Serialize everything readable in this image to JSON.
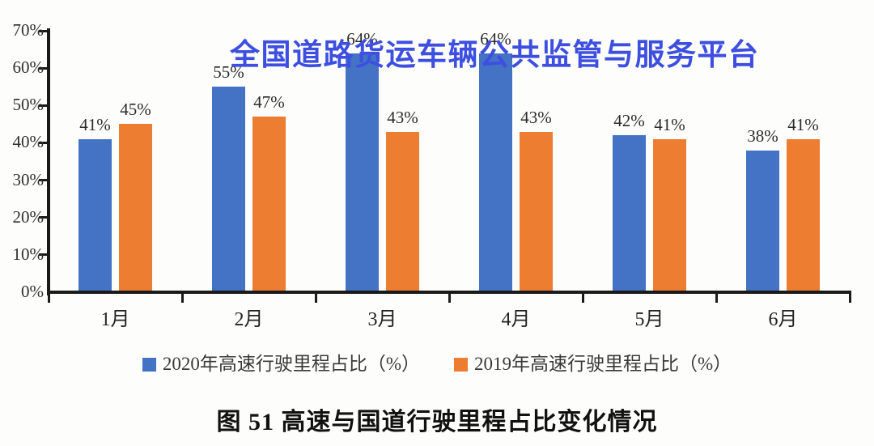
{
  "watermark": {
    "text": "全国道路货运车辆公共监管与服务平台",
    "color": "#3d4fe0"
  },
  "caption": "图 51 高速与国道行驶里程占比变化情况",
  "chart_data": {
    "type": "bar",
    "title": "",
    "xlabel": "",
    "ylabel": "",
    "categories": [
      "1月",
      "2月",
      "3月",
      "4月",
      "5月",
      "6月"
    ],
    "series": [
      {
        "name": "2020年高速行驶里程占比（%）",
        "color": "#4472C4",
        "values": [
          41,
          55,
          64,
          64,
          42,
          38
        ]
      },
      {
        "name": "2019年高速行驶里程占比（%）",
        "color": "#ED7D31",
        "values": [
          45,
          47,
          43,
          43,
          41,
          41
        ]
      }
    ],
    "ylim": [
      0,
      70
    ],
    "ytick_step": 10,
    "yticks": [
      "0%",
      "10%",
      "20%",
      "30%",
      "40%",
      "50%",
      "60%",
      "70%"
    ],
    "value_label_suffix": "%",
    "grid": false,
    "legend_position": "bottom",
    "axis_color": "#1a1a1a"
  }
}
